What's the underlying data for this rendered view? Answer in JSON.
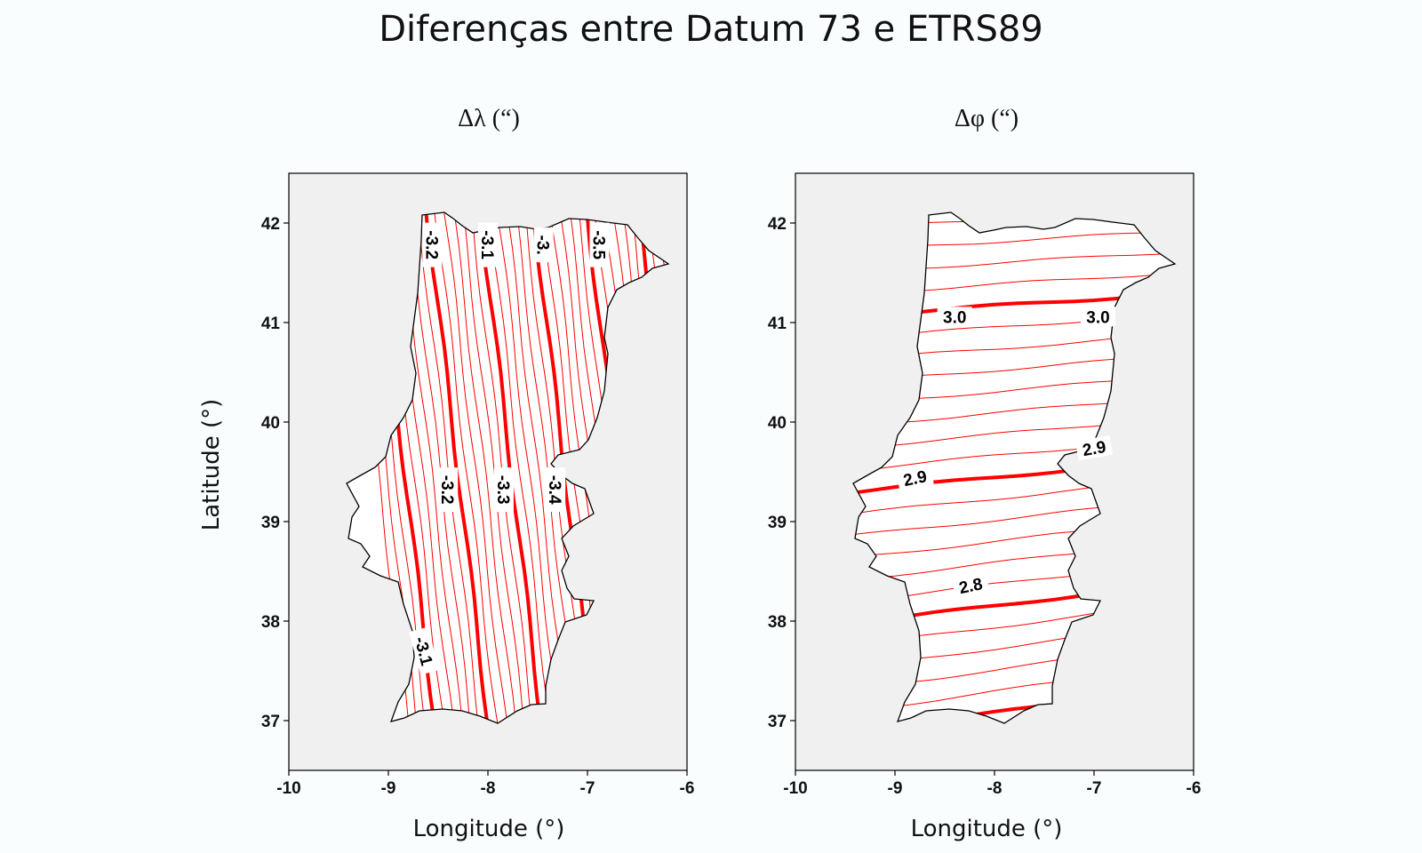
{
  "title": "Diferenças entre Datum 73 e ETRS89",
  "panels": [
    {
      "title": "Δλ (“)",
      "xlabel": "Longitude (°)",
      "ylabel": "Latitude (°)",
      "xlim": [
        -10,
        -6
      ],
      "ylim": [
        36.5,
        42.5
      ],
      "x_ticks": [
        "-10",
        "-9",
        "-8",
        "-7",
        "-6"
      ],
      "y_ticks": [
        "37",
        "38",
        "39",
        "40",
        "41",
        "42"
      ],
      "contour_orientation": "north-south",
      "contour_labels": [
        "-3.2",
        "-3.1",
        "-3.",
        "-3.5",
        "-3.2",
        "-3.3",
        "-3.4",
        "-3.1"
      ],
      "line_color": "#ff0000",
      "background": "#f0f0f0"
    },
    {
      "title": "Δφ (“)",
      "xlabel": "Longitude (°)",
      "xlim": [
        -10,
        -6
      ],
      "ylim": [
        36.5,
        42.5
      ],
      "x_ticks": [
        "-10",
        "-9",
        "-8",
        "-7",
        "-6"
      ],
      "y_ticks": [
        "37",
        "38",
        "39",
        "40",
        "41",
        "42"
      ],
      "contour_orientation": "east-west",
      "contour_labels": [
        "3.0",
        "3.0",
        "2.9",
        "2.9",
        "2.8"
      ],
      "line_color": "#ff0000",
      "background": "#f0f0f0"
    }
  ]
}
